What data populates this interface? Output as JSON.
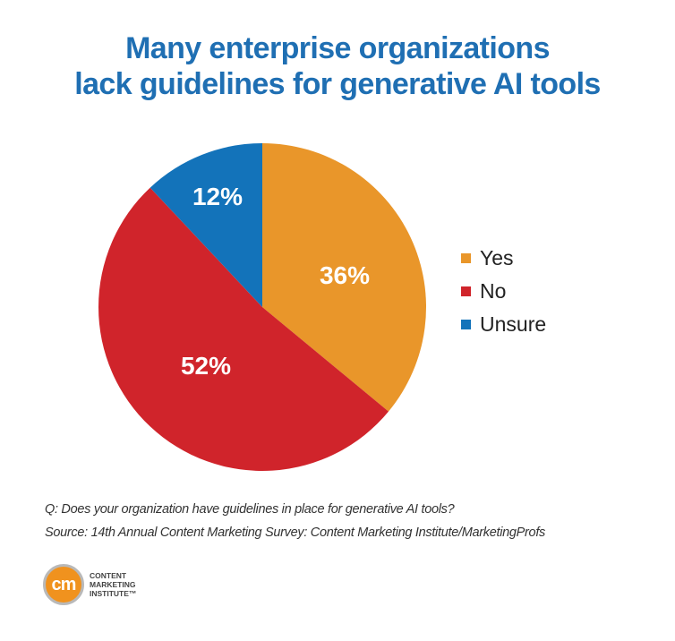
{
  "title": {
    "line1": "Many enterprise organizations",
    "line2": "lack guidelines for generative AI tools"
  },
  "chart_data": {
    "type": "pie",
    "title": "Many enterprise organizations lack guidelines for generative AI tools",
    "categories": [
      "Yes",
      "No",
      "Unsure"
    ],
    "values": [
      36,
      52,
      12
    ],
    "labels": [
      "36%",
      "52%",
      "12%"
    ],
    "colors": [
      "#e9962a",
      "#d0242b",
      "#1373ba"
    ],
    "start_angle": "12 o'clock",
    "direction": "clockwise",
    "legend_position": "right"
  },
  "legend": {
    "items": [
      {
        "label": "Yes",
        "color": "#e9962a"
      },
      {
        "label": "No",
        "color": "#d0242b"
      },
      {
        "label": "Unsure",
        "color": "#1373ba"
      }
    ]
  },
  "footnotes": {
    "question": "Q: Does your organization have guidelines in place for generative AI tools?",
    "source": "Source: 14th Annual Content Marketing Survey: Content Marketing Institute/MarketingProfs"
  },
  "logo": {
    "mark": "cm",
    "line1": "CONTENT",
    "line2": "MARKETING",
    "line3": "INSTITUTE™",
    "color": "#f0921e"
  }
}
